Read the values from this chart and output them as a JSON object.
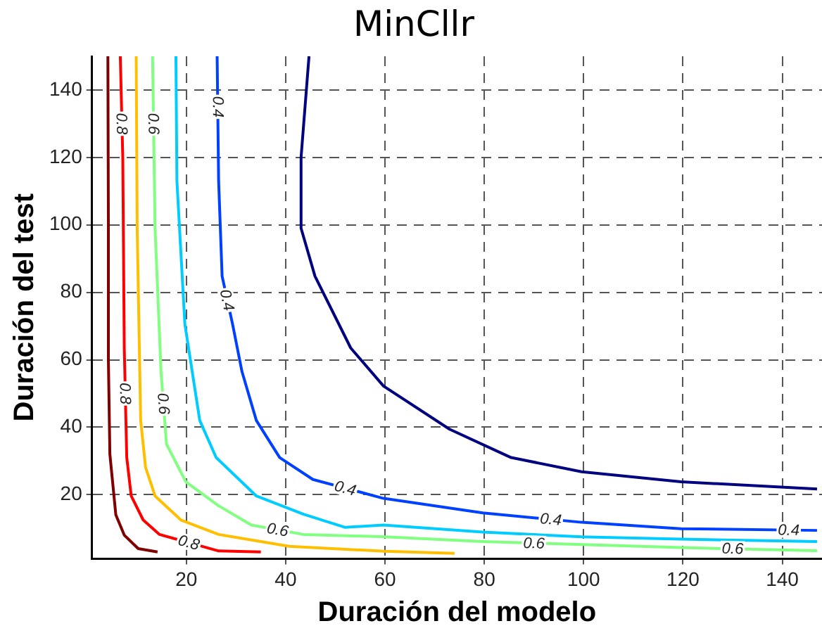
{
  "chart_data": {
    "type": "line",
    "title": "MinCllr",
    "xlabel": "Duración del modelo",
    "ylabel": "Duración del test",
    "xlim": [
      1,
      148
    ],
    "ylim": [
      1,
      150
    ],
    "xticks": [
      20,
      40,
      60,
      80,
      100,
      120,
      140
    ],
    "yticks": [
      20,
      40,
      60,
      80,
      100,
      120,
      140
    ],
    "grid": true,
    "line_style": "solid",
    "series": [
      {
        "color": "#800000",
        "x": [
          4.2,
          4.3,
          4.3,
          4.6,
          5.8,
          7.5,
          10.3,
          14.2
        ],
        "values": [
          150,
          100,
          60,
          32,
          14,
          8,
          4,
          3
        ]
      },
      {
        "color": "#ff0000",
        "x": [
          6.7,
          7.2,
          7.5,
          8.0,
          8.9,
          11.3,
          14.6,
          26.5,
          35
        ],
        "values": [
          150,
          120,
          63.5,
          31,
          19.6,
          12.5,
          8.2,
          3.3,
          3
        ]
      },
      {
        "color": "#ffbf00",
        "x": [
          9.9,
          10.1,
          10.8,
          11.8,
          13.7,
          18.9,
          26.5,
          40.7,
          60,
          74
        ],
        "values": [
          150,
          99,
          42,
          28,
          19.6,
          12.5,
          8.2,
          4.7,
          3.2,
          2.6
        ]
      },
      {
        "color": "#80ff80",
        "x": [
          13.2,
          13.7,
          14.9,
          16.0,
          19.9,
          26.5,
          33.1,
          43.6,
          60,
          79.7,
          119.6,
          147
        ],
        "values": [
          150,
          99,
          56.5,
          35,
          23.8,
          16.7,
          11,
          8.2,
          7.5,
          6.1,
          4.3,
          3.4
        ]
      },
      {
        "color": "#00ccff",
        "x": [
          17.9,
          18.1,
          19.7,
          22.7,
          26,
          34.1,
          43.6,
          52,
          59.7,
          79.7,
          99.6,
          119.6,
          147
        ],
        "values": [
          150,
          113,
          70.6,
          42,
          31,
          19.6,
          14.2,
          10.3,
          11,
          8.9,
          7.5,
          6.8,
          6.1
        ]
      },
      {
        "color": "#0040ff",
        "x": [
          26.2,
          26.5,
          27.2,
          29.3,
          31.2,
          34.1,
          38.8,
          45.5,
          59.7,
          79.7,
          99.6,
          119.6,
          147
        ],
        "values": [
          150,
          113,
          84.8,
          70.6,
          56.5,
          42,
          31,
          24.5,
          18.9,
          14.6,
          11.8,
          9.9,
          9.4
        ]
      },
      {
        "color": "#000080",
        "x": [
          44.7,
          43.1,
          43.1,
          45.9,
          53.1,
          59.7,
          73,
          85.4,
          99.6,
          119.6,
          147
        ],
        "values": [
          150,
          120,
          99,
          84.8,
          63.5,
          52.2,
          39.4,
          31,
          26.8,
          23.8,
          21.7
        ]
      }
    ],
    "annotations": [
      {
        "text": "0.8",
        "x": 7.0,
        "y": 130
      },
      {
        "text": "0.8",
        "x": 7.7,
        "y": 50
      },
      {
        "text": "0.8",
        "x": 20.5,
        "y": 5.8
      },
      {
        "text": "0.6",
        "x": 13.4,
        "y": 130
      },
      {
        "text": "0.6",
        "x": 15.4,
        "y": 47
      },
      {
        "text": "0.6",
        "x": 38.4,
        "y": 9.6
      },
      {
        "text": "0.6",
        "x": 90,
        "y": 5.6
      },
      {
        "text": "0.6",
        "x": 130,
        "y": 4
      },
      {
        "text": "0.4",
        "x": 26.4,
        "y": 135
      },
      {
        "text": "0.4",
        "x": 28.2,
        "y": 77.7
      },
      {
        "text": "0.4",
        "x": 52,
        "y": 21.9
      },
      {
        "text": "0.4",
        "x": 93.4,
        "y": 12.7
      },
      {
        "text": "0.4",
        "x": 141.3,
        "y": 9.5
      }
    ]
  }
}
